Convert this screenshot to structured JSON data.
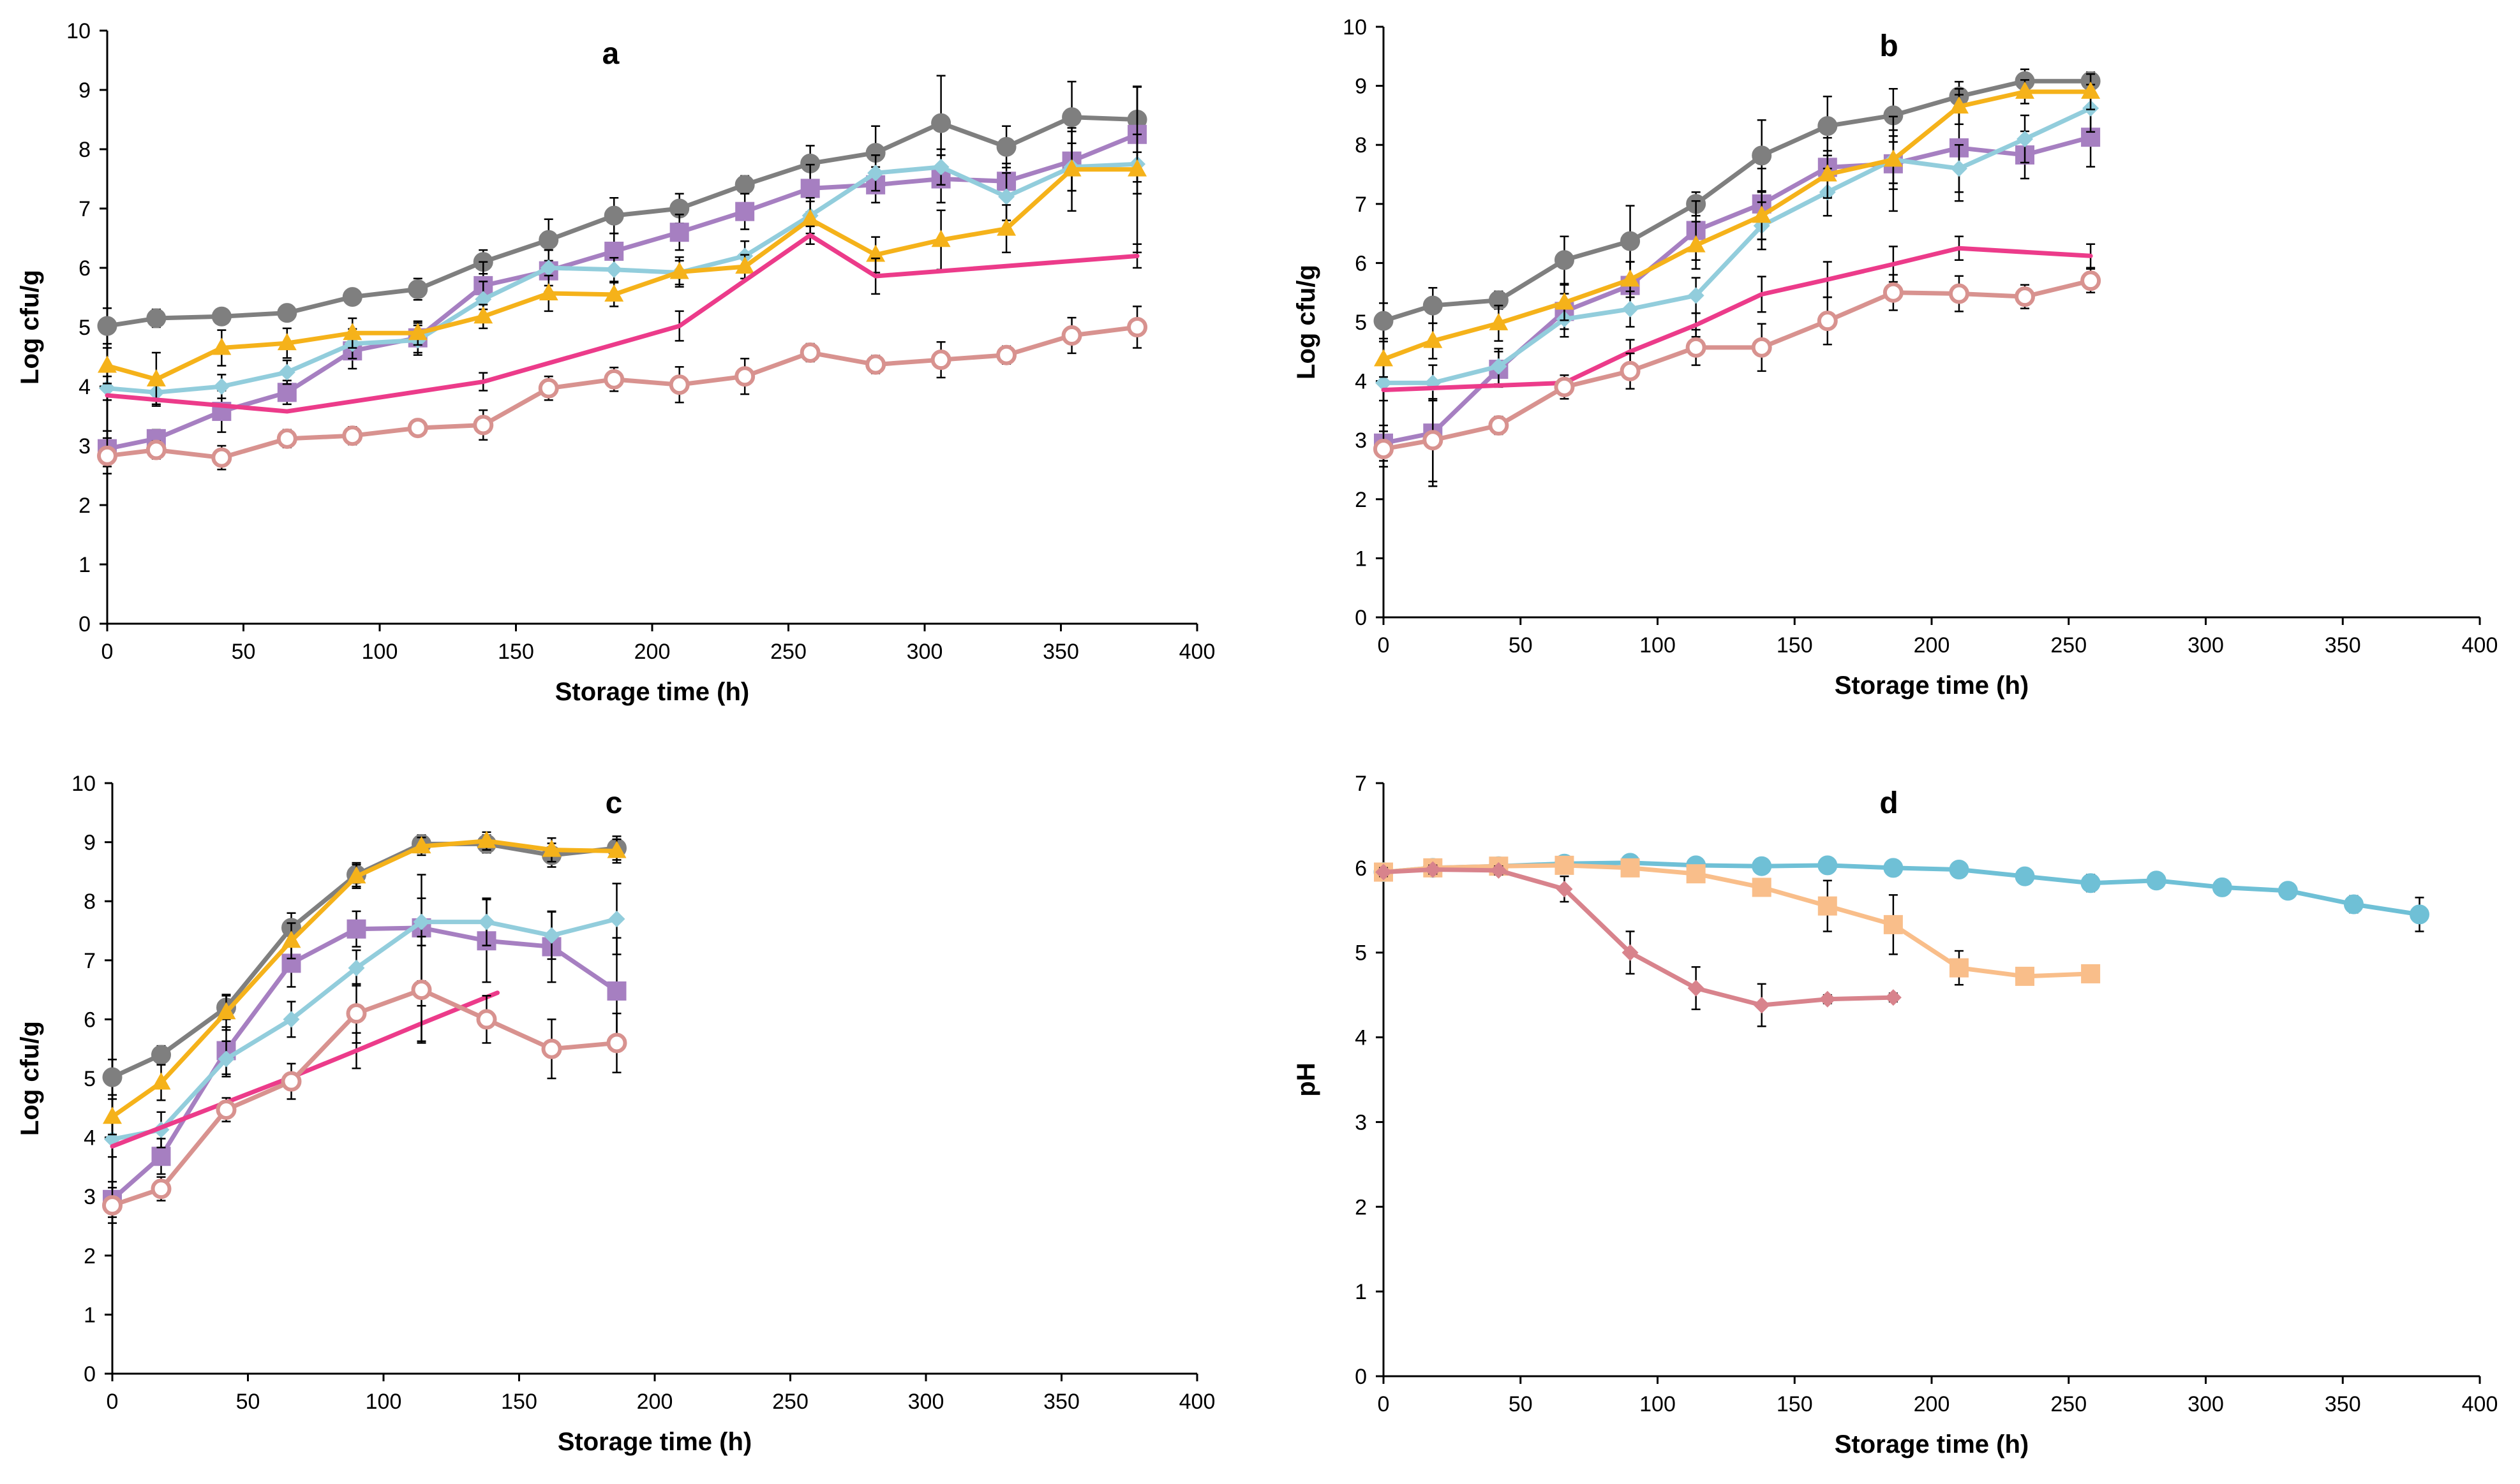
{
  "chart_data": [
    {
      "type": "line",
      "title": "a",
      "xlabel": "Storage time (h)",
      "ylabel": "Log cfu/g",
      "xlim": [
        0,
        400
      ],
      "ylim": [
        0,
        10
      ],
      "xticks": [
        0,
        50,
        100,
        150,
        200,
        250,
        300,
        350,
        400
      ],
      "yticks": [
        0,
        1,
        2,
        3,
        4,
        5,
        6,
        7,
        8,
        9,
        10
      ],
      "series": [
        {
          "name": "grey",
          "color": "#7f7f7f",
          "marker": "circle",
          "x": [
            0,
            18,
            42,
            66,
            90,
            114,
            138,
            162,
            186,
            210,
            234,
            258,
            282,
            306,
            330,
            354,
            378
          ],
          "y": [
            5.02,
            5.15,
            5.18,
            5.24,
            5.51,
            5.64,
            6.1,
            6.47,
            6.88,
            7.0,
            7.4,
            7.76,
            7.94,
            8.44,
            8.04,
            8.54,
            8.5
          ],
          "err": [
            0.3,
            0.15,
            0.12,
            0.12,
            0.1,
            0.18,
            0.2,
            0.35,
            0.3,
            0.25,
            0.15,
            0.3,
            0.45,
            0.8,
            0.35,
            0.6,
            0.55
          ]
        },
        {
          "name": "purple",
          "color": "#a67fc1",
          "marker": "square",
          "x": [
            0,
            18,
            42,
            66,
            90,
            114,
            138,
            162,
            186,
            210,
            234,
            258,
            282,
            306,
            330,
            354,
            378
          ],
          "y": [
            2.95,
            3.12,
            3.58,
            3.9,
            4.6,
            4.82,
            5.7,
            5.95,
            6.28,
            6.6,
            6.95,
            7.34,
            7.4,
            7.5,
            7.46,
            7.8,
            8.25
          ],
          "err": [
            0.3,
            0.15,
            0.35,
            0.2,
            0.3,
            0.25,
            0.4,
            0.35,
            0.3,
            0.3,
            0.3,
            0.4,
            0.3,
            0.4,
            0.3,
            0.5,
            0.8
          ]
        },
        {
          "name": "light blue",
          "color": "#92cddc",
          "marker": "diamond",
          "x": [
            0,
            18,
            42,
            66,
            90,
            114,
            138,
            162,
            186,
            210,
            234,
            258,
            282,
            306,
            330,
            354,
            378
          ],
          "y": [
            3.97,
            3.9,
            4.0,
            4.24,
            4.72,
            4.78,
            5.47,
            6.0,
            5.97,
            5.92,
            6.2,
            6.88,
            7.6,
            7.7,
            7.2,
            7.7,
            7.75
          ],
          "err": [
            0.2,
            0.2,
            0.2,
            0.2,
            0.25,
            0.25,
            0.3,
            0.3,
            0.2,
            0.2,
            0.25,
            0.3,
            0.3,
            0.3,
            0.4,
            0.4,
            0.5
          ]
        },
        {
          "name": "yellow",
          "color": "#f5b21a",
          "marker": "triangle",
          "x": [
            0,
            18,
            42,
            66,
            90,
            114,
            138,
            162,
            186,
            210,
            234,
            258,
            282,
            306,
            330,
            354,
            378
          ],
          "y": [
            4.35,
            4.12,
            4.65,
            4.73,
            4.9,
            4.9,
            5.18,
            5.57,
            5.55,
            5.93,
            6.02,
            6.82,
            6.22,
            6.47,
            6.66,
            7.66,
            7.66
          ],
          "err": [
            0.3,
            0.45,
            0.3,
            0.25,
            0.25,
            0.2,
            0.2,
            0.3,
            0.2,
            0.25,
            0.2,
            0.3,
            0.3,
            0.5,
            0.4,
            0.7,
            1.4
          ]
        },
        {
          "name": "pink",
          "color": "#ec3b8a",
          "marker": "none",
          "x": [
            0,
            66,
            138,
            210,
            258,
            282,
            378
          ],
          "y": [
            3.85,
            3.58,
            4.08,
            5.02,
            6.55,
            5.86,
            6.2
          ],
          "err": [
            0.0,
            0.0,
            0.15,
            0.25,
            0.15,
            0.3,
            0.2
          ]
        },
        {
          "name": "open circle",
          "color": "#d8928f",
          "marker": "open-circle",
          "x": [
            0,
            18,
            42,
            66,
            90,
            114,
            138,
            162,
            186,
            210,
            234,
            258,
            282,
            306,
            330,
            354,
            378
          ],
          "y": [
            2.83,
            2.93,
            2.8,
            3.12,
            3.17,
            3.3,
            3.35,
            3.97,
            4.12,
            4.03,
            4.17,
            4.57,
            4.37,
            4.45,
            4.53,
            4.86,
            5.0
          ],
          "err": [
            0.3,
            0.15,
            0.2,
            0.15,
            0.15,
            0.12,
            0.25,
            0.2,
            0.2,
            0.3,
            0.3,
            0.15,
            0.15,
            0.3,
            0.15,
            0.3,
            0.35
          ]
        }
      ]
    },
    {
      "type": "line",
      "title": "b",
      "xlabel": "Storage time (h)",
      "ylabel": "Log cfu/g",
      "xlim": [
        0,
        400
      ],
      "ylim": [
        0,
        10
      ],
      "xticks": [
        0,
        50,
        100,
        150,
        200,
        250,
        300,
        350,
        400
      ],
      "yticks": [
        0,
        1,
        2,
        3,
        4,
        5,
        6,
        7,
        8,
        9,
        10
      ],
      "series": [
        {
          "name": "grey",
          "color": "#7f7f7f",
          "marker": "circle",
          "x": [
            0,
            18,
            42,
            66,
            90,
            114,
            138,
            162,
            186,
            210,
            234,
            258
          ],
          "y": [
            5.02,
            5.28,
            5.37,
            6.05,
            6.37,
            7.0,
            7.82,
            8.32,
            8.5,
            8.82,
            9.08,
            9.08
          ],
          "err": [
            0.3,
            0.3,
            0.15,
            0.4,
            0.6,
            0.2,
            0.6,
            0.5,
            0.45,
            0.25,
            0.2,
            0.15
          ]
        },
        {
          "name": "purple",
          "color": "#a67fc1",
          "marker": "square",
          "x": [
            0,
            18,
            42,
            66,
            90,
            114,
            138,
            162,
            186,
            210,
            234,
            258
          ],
          "y": [
            2.95,
            3.12,
            4.2,
            5.18,
            5.62,
            6.55,
            7.0,
            7.62,
            7.68,
            7.95,
            7.83,
            8.13
          ],
          "err": [
            0.3,
            0.9,
            0.3,
            0.3,
            0.4,
            0.5,
            0.6,
            0.5,
            0.8,
            0.9,
            0.4,
            0.5
          ]
        },
        {
          "name": "light blue",
          "color": "#92cddc",
          "marker": "diamond",
          "x": [
            0,
            18,
            42,
            66,
            90,
            114,
            138,
            162,
            186,
            210,
            234,
            258
          ],
          "y": [
            3.97,
            3.97,
            4.25,
            5.05,
            5.22,
            5.45,
            6.63,
            7.2,
            7.75,
            7.6,
            8.1,
            8.62
          ],
          "err": [
            0.3,
            0.3,
            0.3,
            0.3,
            0.3,
            0.3,
            0.4,
            0.4,
            0.4,
            0.4,
            0.4,
            0.4
          ]
        },
        {
          "name": "yellow",
          "color": "#f5b21a",
          "marker": "triangle",
          "x": [
            0,
            18,
            42,
            66,
            90,
            114,
            138,
            162,
            186,
            210,
            234,
            258
          ],
          "y": [
            4.37,
            4.68,
            4.98,
            5.33,
            5.72,
            6.3,
            6.8,
            7.5,
            7.75,
            8.65,
            8.9,
            8.9
          ],
          "err": [
            0.3,
            0.3,
            0.3,
            0.3,
            0.3,
            0.4,
            0.4,
            0.4,
            0.5,
            0.3,
            0.2,
            0.3
          ]
        },
        {
          "name": "pink",
          "color": "#ec3b8a",
          "marker": "none",
          "x": [
            0,
            66,
            90,
            114,
            138,
            162,
            186,
            210,
            258
          ],
          "y": [
            3.85,
            3.97,
            4.5,
            4.95,
            5.47,
            5.72,
            5.98,
            6.25,
            6.12
          ],
          "err": [
            0.0,
            0.0,
            0.2,
            0.2,
            0.3,
            0.3,
            0.3,
            0.2,
            0.2
          ]
        },
        {
          "name": "open circle",
          "color": "#d8928f",
          "marker": "open-circle",
          "x": [
            0,
            18,
            42,
            66,
            90,
            114,
            138,
            162,
            186,
            210,
            234,
            258
          ],
          "y": [
            2.85,
            3.0,
            3.25,
            3.9,
            4.17,
            4.57,
            4.57,
            5.02,
            5.5,
            5.48,
            5.43,
            5.7
          ],
          "err": [
            0.3,
            0.7,
            0.15,
            0.2,
            0.3,
            0.3,
            0.4,
            0.4,
            0.3,
            0.3,
            0.2,
            0.2
          ]
        }
      ]
    },
    {
      "type": "line",
      "title": "c",
      "xlabel": "Storage time (h)",
      "ylabel": "Log cfu/g",
      "xlim": [
        0,
        400
      ],
      "ylim": [
        0,
        10
      ],
      "xticks": [
        0,
        50,
        100,
        150,
        200,
        250,
        300,
        350,
        400
      ],
      "yticks": [
        0,
        1,
        2,
        3,
        4,
        5,
        6,
        7,
        8,
        9,
        10
      ],
      "series": [
        {
          "name": "grey",
          "color": "#7f7f7f",
          "marker": "circle",
          "x": [
            0,
            18,
            42,
            66,
            90,
            114,
            138,
            162,
            186
          ],
          "y": [
            5.02,
            5.4,
            6.2,
            7.55,
            8.45,
            8.97,
            8.97,
            8.78,
            8.9
          ],
          "err": [
            0.3,
            0.15,
            0.2,
            0.25,
            0.2,
            0.15,
            0.15,
            0.2,
            0.2
          ]
        },
        {
          "name": "purple",
          "color": "#a67fc1",
          "marker": "square",
          "x": [
            0,
            18,
            42,
            66,
            90,
            114,
            138,
            162,
            186
          ],
          "y": [
            2.95,
            3.68,
            5.47,
            6.95,
            7.53,
            7.55,
            7.33,
            7.23,
            6.48
          ],
          "err": [
            0.3,
            0.3,
            0.4,
            0.4,
            0.3,
            0.9,
            0.7,
            0.6,
            0.9
          ]
        },
        {
          "name": "light blue",
          "color": "#92cddc",
          "marker": "diamond",
          "x": [
            0,
            18,
            42,
            66,
            90,
            114,
            138,
            162,
            186
          ],
          "y": [
            3.97,
            4.13,
            5.33,
            6.0,
            6.87,
            7.65,
            7.65,
            7.42,
            7.7
          ],
          "err": [
            0.3,
            0.3,
            0.3,
            0.3,
            0.3,
            0.4,
            0.4,
            0.4,
            0.6
          ]
        },
        {
          "name": "yellow",
          "color": "#f5b21a",
          "marker": "triangle",
          "x": [
            0,
            18,
            42,
            66,
            90,
            114,
            138,
            162,
            186
          ],
          "y": [
            4.35,
            4.93,
            6.12,
            7.33,
            8.42,
            8.93,
            9.02,
            8.87,
            8.85
          ],
          "err": [
            0.3,
            0.3,
            0.3,
            0.3,
            0.2,
            0.15,
            0.15,
            0.2,
            0.2
          ]
        },
        {
          "name": "pink",
          "color": "#ec3b8a",
          "marker": "none",
          "x": [
            0,
            66,
            90,
            114,
            142
          ],
          "y": [
            3.85,
            5.02,
            5.47,
            5.93,
            6.45
          ],
          "err": [
            0.0,
            0.0,
            0.3,
            0.3,
            0.0
          ]
        },
        {
          "name": "open circle",
          "color": "#d8928f",
          "marker": "open-circle",
          "x": [
            0,
            18,
            42,
            66,
            90,
            114,
            138,
            162,
            186
          ],
          "y": [
            2.85,
            3.13,
            4.47,
            4.95,
            6.1,
            6.5,
            6.0,
            5.5,
            5.6
          ],
          "err": [
            0.3,
            0.2,
            0.2,
            0.3,
            0.5,
            0.9,
            0.4,
            0.5,
            0.5
          ]
        }
      ]
    },
    {
      "type": "line",
      "title": "d",
      "xlabel": "Storage time (h)",
      "ylabel": "pH",
      "xlim": [
        0,
        400
      ],
      "ylim": [
        0,
        7
      ],
      "xticks": [
        0,
        50,
        100,
        150,
        200,
        250,
        300,
        350,
        400
      ],
      "yticks": [
        0,
        1,
        2,
        3,
        4,
        5,
        6,
        7
      ],
      "series": [
        {
          "name": "blue circles",
          "color": "#6fc0d6",
          "marker": "circle",
          "x": [
            0,
            18,
            42,
            66,
            90,
            114,
            138,
            162,
            186,
            210,
            234,
            258,
            282,
            306,
            330,
            354,
            378
          ],
          "y": [
            5.95,
            6.0,
            6.02,
            6.05,
            6.06,
            6.03,
            6.02,
            6.03,
            6.0,
            5.98,
            5.9,
            5.82,
            5.85,
            5.77,
            5.73,
            5.57,
            5.45
          ],
          "err": [
            0.05,
            0.05,
            0.05,
            0.05,
            0.05,
            0.05,
            0.05,
            0.05,
            0.05,
            0.05,
            0.05,
            0.1,
            0.05,
            0.05,
            0.05,
            0.1,
            0.2
          ]
        },
        {
          "name": "orange squares",
          "color": "#f9be8a",
          "marker": "square",
          "x": [
            0,
            18,
            42,
            66,
            90,
            114,
            138,
            162,
            186,
            210,
            234,
            258
          ],
          "y": [
            5.95,
            6.0,
            6.02,
            6.03,
            6.0,
            5.93,
            5.77,
            5.55,
            5.33,
            4.82,
            4.72,
            4.75
          ],
          "err": [
            0.05,
            0.05,
            0.05,
            0.05,
            0.05,
            0.05,
            0.1,
            0.3,
            0.35,
            0.2,
            0.05,
            0.05
          ]
        },
        {
          "name": "red diamonds",
          "color": "#d8838c",
          "marker": "diamond",
          "x": [
            0,
            18,
            42,
            66,
            90,
            114,
            138,
            162,
            186
          ],
          "y": [
            5.95,
            5.98,
            5.97,
            5.75,
            5.0,
            4.58,
            4.38,
            4.45,
            4.47
          ],
          "err": [
            0.05,
            0.05,
            0.05,
            0.15,
            0.25,
            0.25,
            0.25,
            0.05,
            0.05
          ]
        }
      ]
    }
  ]
}
